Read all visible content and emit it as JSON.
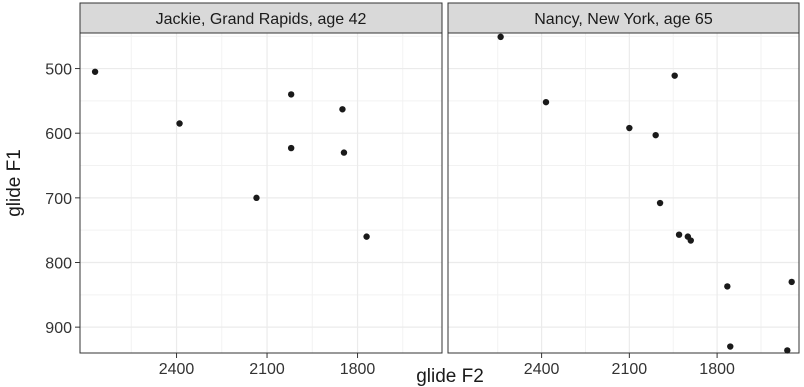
{
  "chart_data": {
    "type": "scatter",
    "xlabel": "glide F2",
    "ylabel": "glide F1",
    "x_reversed": true,
    "y_reversed": true,
    "xlim": [
      2720,
      1520
    ],
    "ylim": [
      940,
      445
    ],
    "x_ticks": [
      2400,
      2100,
      1800
    ],
    "y_ticks": [
      500,
      600,
      700,
      800,
      900
    ],
    "x_tick_labels": [
      "2400",
      "2100",
      "1800"
    ],
    "y_tick_labels": [
      "500",
      "600",
      "700",
      "800",
      "900"
    ],
    "grid": true,
    "point_color": "#1a1a1a",
    "panel_background": "#ffffff",
    "grid_color": "#ebebeb",
    "strip_background": "#d9d9d9",
    "panels": [
      {
        "title": "Jackie, Grand Rapids, age 42",
        "points": [
          {
            "x": 2670,
            "y": 505
          },
          {
            "x": 2390,
            "y": 585
          },
          {
            "x": 2020,
            "y": 540
          },
          {
            "x": 1850,
            "y": 563
          },
          {
            "x": 2020,
            "y": 623
          },
          {
            "x": 1845,
            "y": 630
          },
          {
            "x": 2135,
            "y": 700
          },
          {
            "x": 1770,
            "y": 760
          }
        ]
      },
      {
        "title": "Nancy, New York, age 65",
        "points": [
          {
            "x": 2540,
            "y": 451
          },
          {
            "x": 2385,
            "y": 552
          },
          {
            "x": 1945,
            "y": 511
          },
          {
            "x": 2100,
            "y": 592
          },
          {
            "x": 2010,
            "y": 603
          },
          {
            "x": 1995,
            "y": 708
          },
          {
            "x": 1930,
            "y": 757
          },
          {
            "x": 1900,
            "y": 760
          },
          {
            "x": 1890,
            "y": 766
          },
          {
            "x": 1765,
            "y": 837
          },
          {
            "x": 1545,
            "y": 830
          },
          {
            "x": 1755,
            "y": 930
          },
          {
            "x": 1560,
            "y": 936
          }
        ]
      }
    ]
  }
}
